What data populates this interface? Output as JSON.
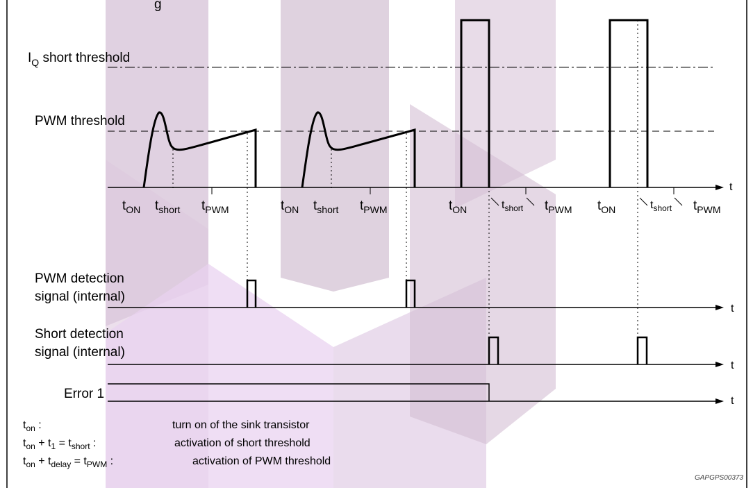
{
  "header_fragment": "g",
  "threshold_labels": {
    "iq_short": {
      "main": "I",
      "sub": "Q",
      "rest": " short threshold"
    },
    "pwm": "PWM threshold"
  },
  "time_axis_label": "t",
  "timing_labels": {
    "t": "t",
    "on_sub": "ON",
    "short_sub": "short",
    "pwm_sub": "PWM"
  },
  "signals": {
    "pwm_detection": [
      "PWM detection",
      "signal (internal)"
    ],
    "short_detection": [
      "Short detection",
      "signal (internal)"
    ],
    "error": "Error 1"
  },
  "legend": [
    {
      "parts": [
        {
          "t": "t"
        },
        {
          "sub": "on"
        },
        {
          "t": " :"
        }
      ],
      "desc": "turn on of the sink transistor"
    },
    {
      "parts": [
        {
          "t": "t"
        },
        {
          "sub": "on"
        },
        {
          "t": " + t"
        },
        {
          "sub": "1"
        },
        {
          "t": " = t"
        },
        {
          "sub": "short"
        },
        {
          "t": " :"
        }
      ],
      "desc": "activation of short threshold"
    },
    {
      "parts": [
        {
          "t": "t"
        },
        {
          "sub": "on"
        },
        {
          "t": " + t"
        },
        {
          "sub": "delay"
        },
        {
          "t": " = t"
        },
        {
          "sub": "PWM"
        },
        {
          "t": " :"
        }
      ],
      "desc": "activation of PWM threshold"
    }
  ],
  "reference_code": "GAPGPS00373",
  "colors": {
    "watermark_a": "#cdb6cf",
    "watermark_b": "#dcc4dc",
    "watermark_c": "#e3c8ec",
    "line": "#000000"
  }
}
